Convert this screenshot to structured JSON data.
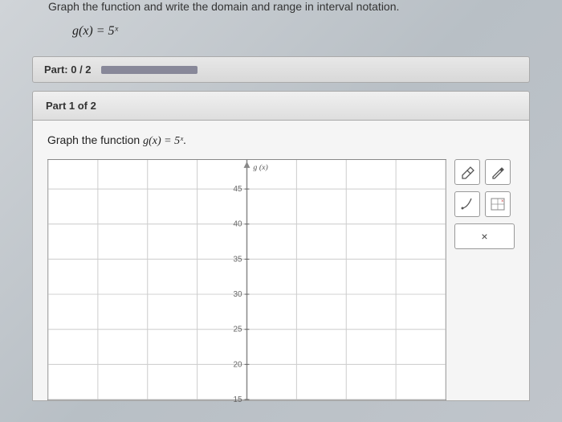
{
  "header": {
    "prompt": "Graph the function and write the domain and range in interval notation.",
    "formula": "g(x) = 5ˣ"
  },
  "progress": {
    "label": "Part: 0 / 2"
  },
  "part": {
    "title": "Part 1 of 2",
    "instruction_prefix": "Graph the function ",
    "instruction_formula": "g(x) = 5ˣ",
    "instruction_suffix": "."
  },
  "chart": {
    "axis_title": "g (x)",
    "y_ticks": [
      45,
      40,
      35,
      30,
      25,
      20,
      15
    ],
    "ylim": [
      15,
      48
    ],
    "x_gridlines": 8,
    "background_color": "#ffffff",
    "grid_color": "#cccccc",
    "axis_color": "#888888",
    "tick_color": "#666666",
    "label_fontsize": 10
  },
  "tools": {
    "eraser": "eraser-icon",
    "pencil": "pencil-icon",
    "curve": "curve-icon",
    "point": "point-icon",
    "close": "×"
  }
}
